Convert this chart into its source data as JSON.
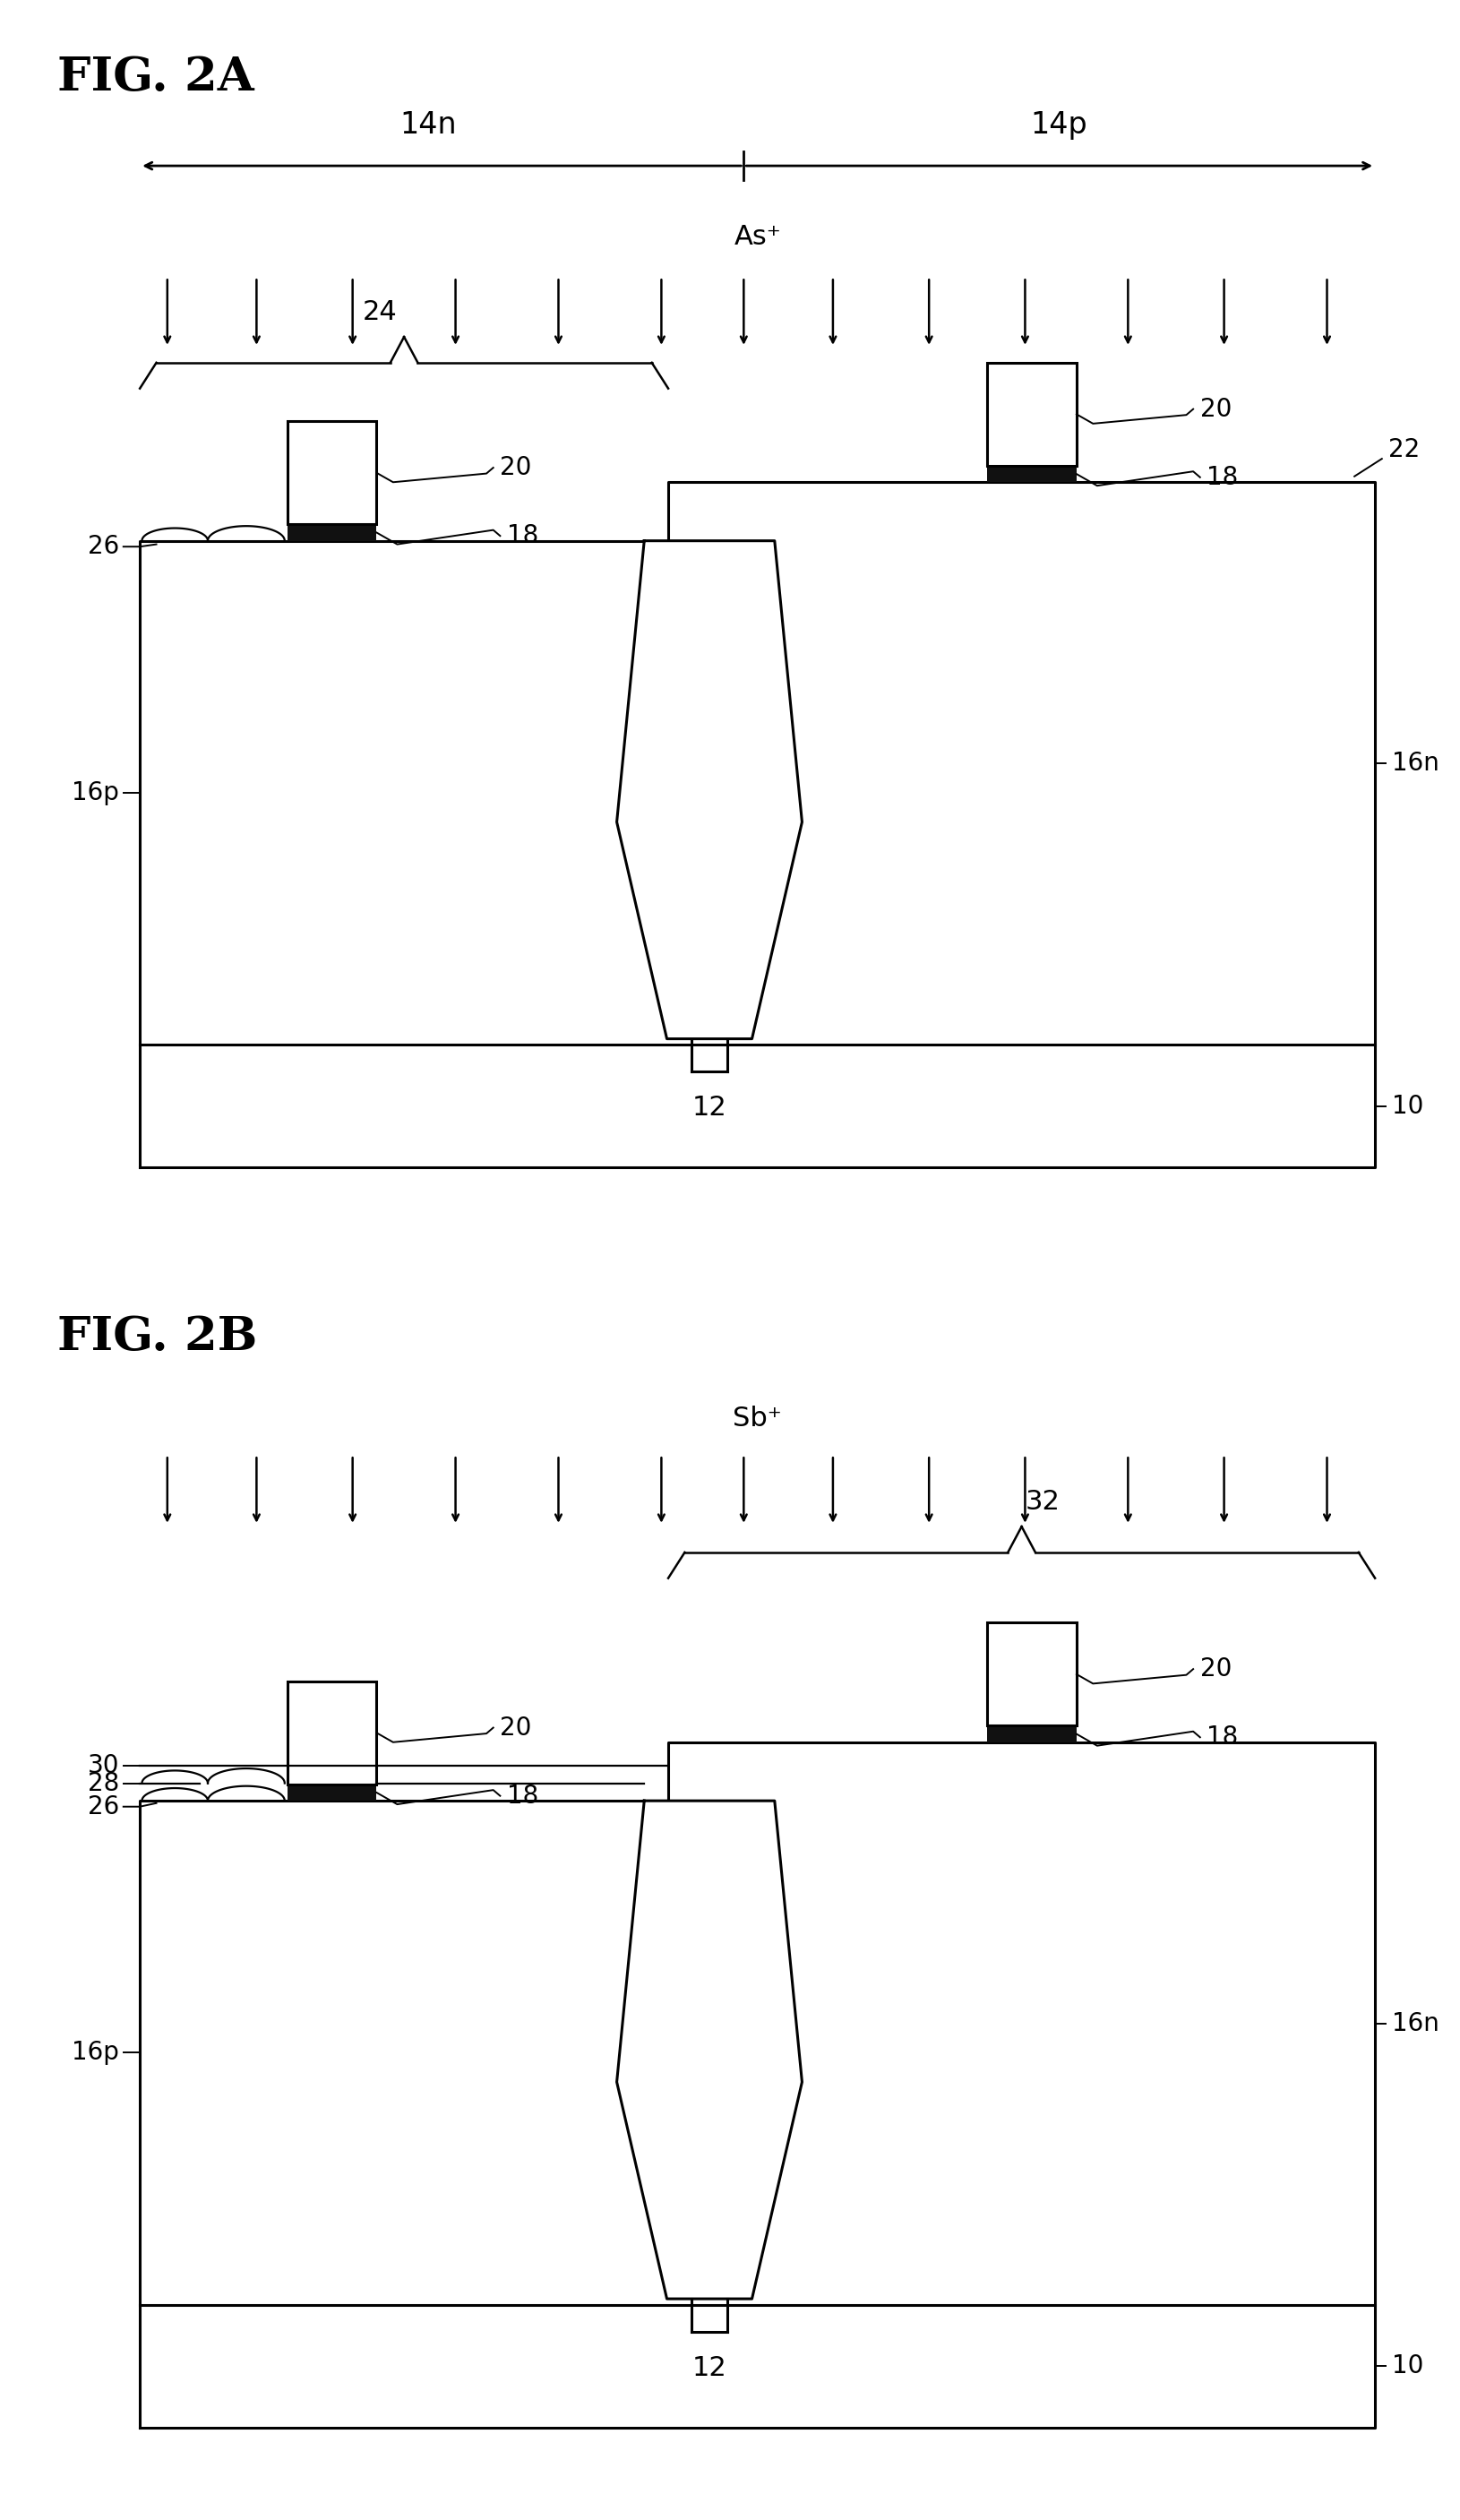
{
  "fig_title_2A": "FIG. 2A",
  "fig_title_2B": "FIG. 2B",
  "bg_color": "#ffffff",
  "line_color": "#000000",
  "labels": {
    "14n": "14n",
    "14p": "14p",
    "As+": "As⁺",
    "Sb+": "Sb⁺",
    "24": "24",
    "22": "22",
    "20_L": "20",
    "20_R": "20",
    "18_L": "18",
    "18_R": "18",
    "26": "26",
    "16p": "16p",
    "16n": "16n",
    "12": "12",
    "10": "10",
    "32": "32",
    "28": "28",
    "30": "30"
  },
  "lw": 2.2,
  "lw_thin": 1.6
}
